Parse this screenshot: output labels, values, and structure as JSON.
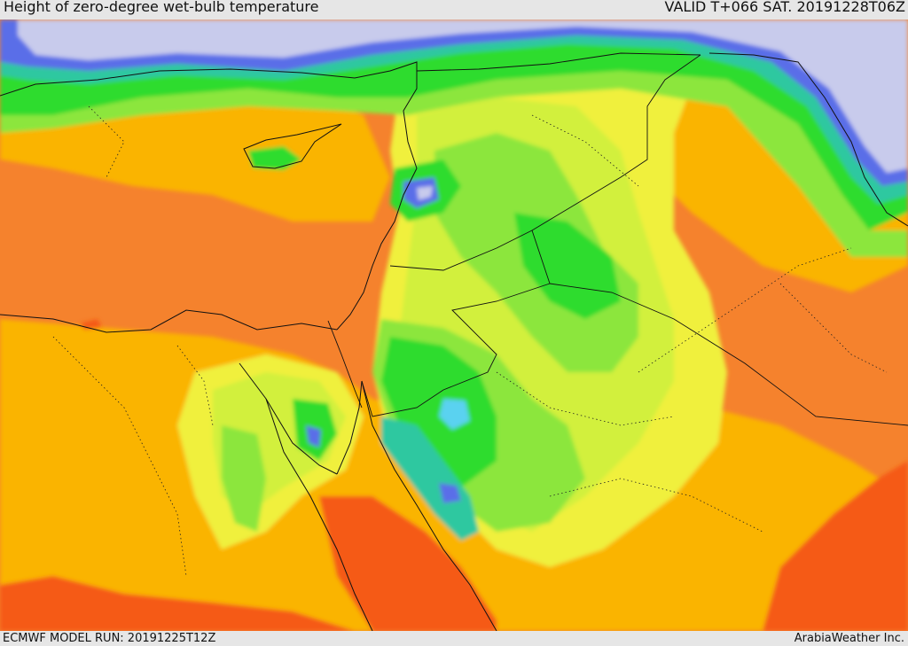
{
  "header": {
    "title": "Height of zero-degree wet-bulb temperature",
    "valid": "VALID T+066 SAT. 20191228T06Z"
  },
  "footer": {
    "model_run": "ECMWF MODEL RUN: 20191225T12Z",
    "credit": "ArabiaWeather Inc."
  },
  "palette": {
    "very_low": "#c8cbec",
    "blue": "#5a6ee8",
    "cyan": "#5ad2f0",
    "teal": "#2dc8a0",
    "green": "#2ddc2d",
    "light_green": "#8ce63c",
    "yellow_green": "#d2f03c",
    "yellow": "#f0f03c",
    "light_orange": "#fab400",
    "orange": "#f5822d",
    "red_orange": "#f55a19"
  }
}
